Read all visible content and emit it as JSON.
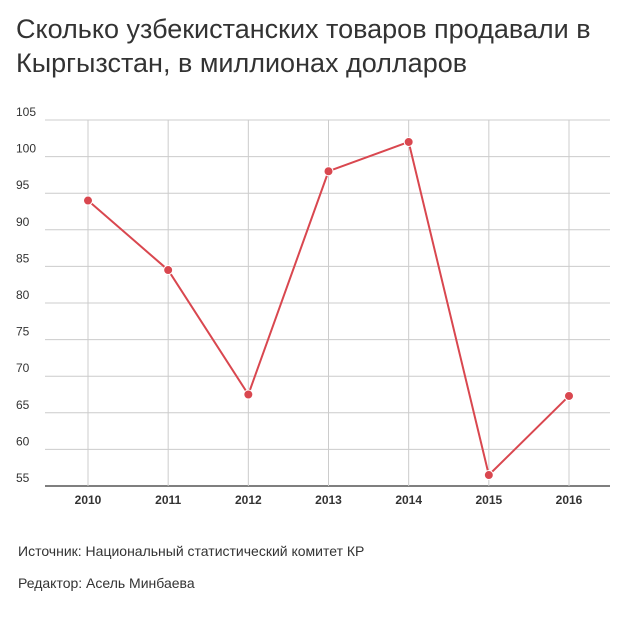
{
  "title": "Сколько узбекистанских товаров продавали в Кыргызстан, в миллионах долларов",
  "footer": {
    "source": "Источник: Национальный статистический комитет КР",
    "editor": "Редактор: Асель Минбаева"
  },
  "colors": {
    "line": "#d9474f",
    "grid": "#cccccc",
    "axis": "#333333"
  },
  "chart_data": {
    "type": "line",
    "title": "Сколько узбекистанских товаров продавали в Кыргызстан, в миллионах долларов",
    "xlabel": "",
    "ylabel": "",
    "categories": [
      "2010",
      "2011",
      "2012",
      "2013",
      "2014",
      "2015",
      "2016"
    ],
    "series": [
      {
        "values": [
          94,
          84.5,
          67.5,
          98,
          102,
          56.5,
          67.3
        ]
      }
    ],
    "ylim": [
      55,
      105
    ],
    "yticks": [
      55,
      60,
      65,
      70,
      75,
      80,
      85,
      90,
      95,
      100,
      105
    ],
    "grid": true,
    "legend": "none"
  }
}
